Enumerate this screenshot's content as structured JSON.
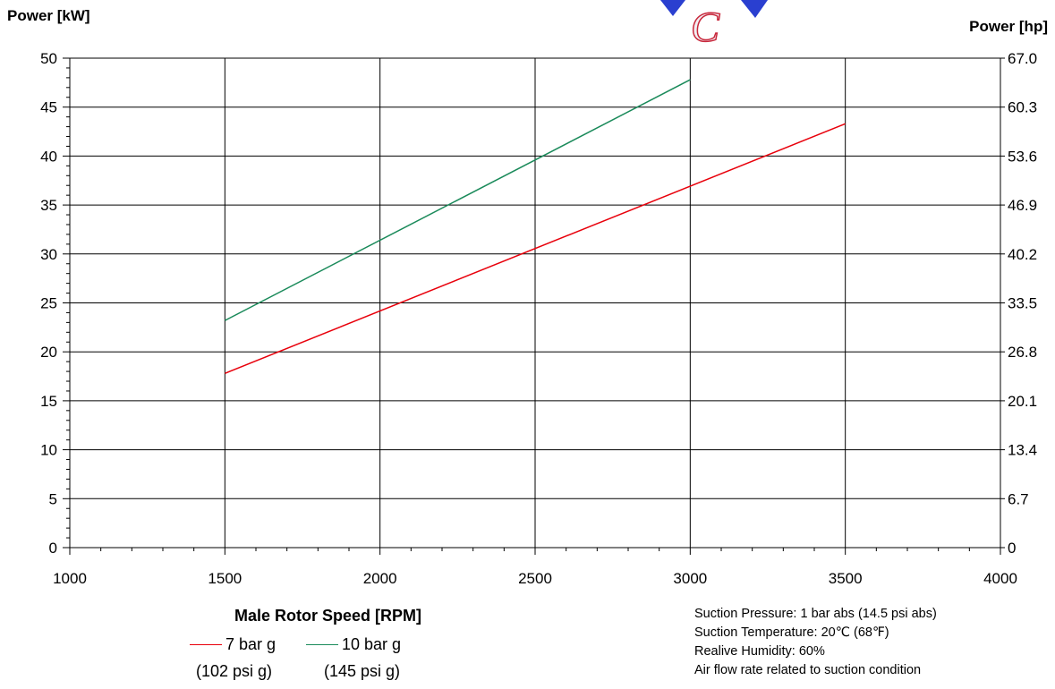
{
  "chart_data": {
    "type": "line",
    "title": "",
    "xlabel": "Male Rotor Speed [RPM]",
    "ylabel": "Power [kW]",
    "ylabel_right": "Power [hp]",
    "xlim": [
      1000,
      4000
    ],
    "ylim": [
      0,
      50
    ],
    "x_ticks": [
      "1000",
      "1500",
      "2000",
      "2500",
      "3000",
      "3500",
      "4000"
    ],
    "y_ticks": [
      "0",
      "5",
      "10",
      "15",
      "20",
      "25",
      "30",
      "35",
      "40",
      "45",
      "50"
    ],
    "y2_ticks": [
      "0",
      "6.7",
      "13.4",
      "20.1",
      "26.8",
      "33.5",
      "40.2",
      "46.9",
      "53.6",
      "60.3",
      "67.0"
    ],
    "grid": true,
    "series": [
      {
        "name": "7 bar g",
        "subname": "(102 psi g)",
        "color": "#e8000b",
        "x": [
          1500,
          3500
        ],
        "y": [
          17.8,
          43.3
        ]
      },
      {
        "name": "10 bar g",
        "subname": "(145 psi g)",
        "color": "#1a8a5a",
        "x": [
          1500,
          3000
        ],
        "y": [
          23.2,
          47.8
        ]
      }
    ]
  },
  "notes": [
    "Suction Pressure:  1 bar abs (14.5 psi abs)",
    "Suction Temperature:  20℃ (68℉)",
    "Realive Humidity:  60%",
    "Air flow rate related to suction condition"
  ],
  "colors": {
    "grid": "#000000",
    "logo_blue": "#2a3fd0",
    "logo_red": "#c8283c"
  }
}
